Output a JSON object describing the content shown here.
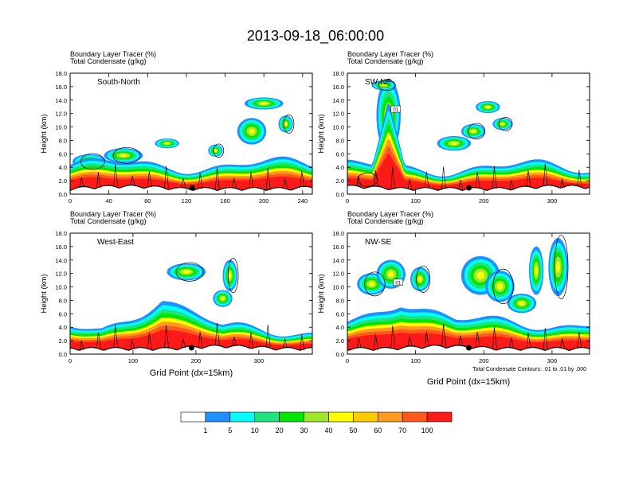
{
  "title": "2013-09-18_06:00:00",
  "fill_label": "Boundary Layer Tracer   (%)",
  "contour_label": "Total Condensate   (g/kg)",
  "ylabel": "Height (km)",
  "xlabel": "Grid Point (dx=15km)",
  "contour_note": "Total Condensate Contours: .01 to .01 by .000",
  "contour_box_label": "01",
  "colorbar": {
    "colors": [
      "#ffffff",
      "#1e90ff",
      "#00ffff",
      "#1fe37e",
      "#00e600",
      "#9fe62e",
      "#ffff00",
      "#ffcc00",
      "#ff9a1f",
      "#ff5a1e",
      "#ff1a1a"
    ],
    "ticks": [
      "1",
      "5",
      "10",
      "20",
      "30",
      "40",
      "50",
      "60",
      "70",
      "100"
    ]
  },
  "chart_data": [
    {
      "type": "heatmap",
      "id": "south-north",
      "panel_label": "South-North",
      "x_ticks": [
        "0",
        "40",
        "80",
        "120",
        "160",
        "200",
        "240"
      ],
      "xlim": [
        0,
        250
      ],
      "y_ticks": [
        "0.0",
        "2.0",
        "4.0",
        "6.0",
        "8.0",
        "10.0",
        "12.0",
        "14.0",
        "16.0",
        "18.0"
      ],
      "ylim": [
        0,
        18
      ],
      "marker_x": 126
    },
    {
      "type": "heatmap",
      "id": "sw-ne",
      "panel_label": "SW-NE",
      "x_ticks": [
        "0",
        "100",
        "200",
        "300"
      ],
      "xlim": [
        0,
        355
      ],
      "y_ticks": [
        "0.0",
        "2.0",
        "4.0",
        "6.0",
        "8.0",
        "10.0",
        "12.0",
        "14.0",
        "16.0",
        "18.0"
      ],
      "ylim": [
        0,
        18
      ],
      "marker_x": 178
    },
    {
      "type": "heatmap",
      "id": "west-east",
      "panel_label": "West-East",
      "x_ticks": [
        "0",
        "100",
        "200",
        "300"
      ],
      "xlim": [
        0,
        385
      ],
      "y_ticks": [
        "0.0",
        "2.0",
        "4.0",
        "6.0",
        "8.0",
        "10.0",
        "12.0",
        "14.0",
        "16.0",
        "18.0"
      ],
      "ylim": [
        0,
        18
      ],
      "marker_x": 193
    },
    {
      "type": "heatmap",
      "id": "nw-se",
      "panel_label": "NW-SE",
      "x_ticks": [
        "0",
        "100",
        "200",
        "300"
      ],
      "xlim": [
        0,
        355
      ],
      "y_ticks": [
        "0.0",
        "2.0",
        "4.0",
        "6.0",
        "8.0",
        "10.0",
        "12.0",
        "14.0",
        "16.0",
        "18.0"
      ],
      "ylim": [
        0,
        18
      ],
      "marker_x": 178
    }
  ]
}
